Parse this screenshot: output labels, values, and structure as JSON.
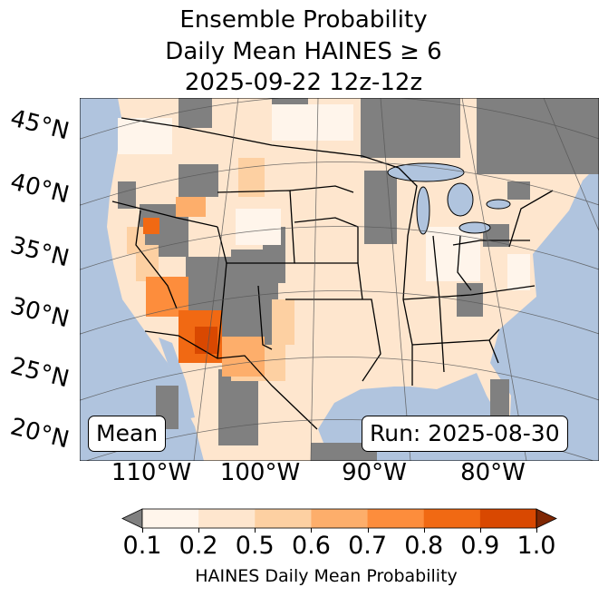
{
  "title": {
    "line1": "Ensemble Probability",
    "line2": "Daily Mean HAINES ≥ 6",
    "line3": "2025-09-22 12z-12z"
  },
  "map": {
    "lat_labels": [
      "45°N",
      "40°N",
      "35°N",
      "30°N",
      "25°N",
      "20°N"
    ],
    "lon_labels": [
      "110°W",
      "100°W",
      "90°W",
      "80°W"
    ],
    "panel_label": "Mean",
    "run_label": "Run: 2025-08-30",
    "colors": {
      "ocean": "#b0c4de",
      "lakes": "#b0c4de",
      "below_min": "#808080"
    }
  },
  "colorbar": {
    "label": "HAINES Daily Mean Probability",
    "ticks": [
      "0.1",
      "0.2",
      "0.5",
      "0.6",
      "0.7",
      "0.8",
      "0.9",
      "1.0"
    ],
    "colors": [
      "#fff5eb",
      "#fee6ce",
      "#fdd0a2",
      "#fdae6b",
      "#fd8d3c",
      "#f16913",
      "#d94801"
    ],
    "under_color": "#808080",
    "over_color": "#7f2704"
  }
}
